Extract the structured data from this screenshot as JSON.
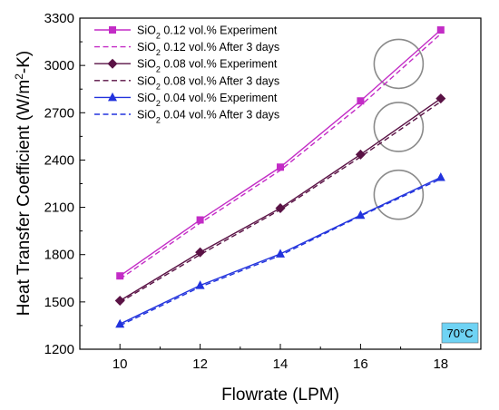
{
  "chart_data": {
    "type": "line",
    "xlabel": "Flowrate (LPM)",
    "ylabel_parts": [
      "Heat Transfer Coefficient (W/m",
      "2",
      "-K)"
    ],
    "xlim": [
      9,
      19
    ],
    "ylim": [
      1200,
      3300
    ],
    "xticks": [
      10,
      12,
      14,
      16,
      18
    ],
    "yticks": [
      1200,
      1500,
      1800,
      2100,
      2400,
      2700,
      3000,
      3300
    ],
    "x": [
      10,
      12,
      14,
      16,
      18
    ],
    "grid": false,
    "legend_position": "top-left",
    "annotation": "70°C",
    "annotation_bg": "#6fd3f4",
    "series": [
      {
        "name_parts": [
          "SiO",
          "2",
          " 0.12 vol.% Experiment"
        ],
        "color": "#c32cc6",
        "dash": false,
        "marker": "square",
        "values": [
          1665,
          2020,
          2355,
          2775,
          3225
        ]
      },
      {
        "name_parts": [
          "SiO",
          "2",
          " 0.12 vol.% After 3 days"
        ],
        "color": "#c32cc6",
        "dash": true,
        "marker": "none",
        "values": [
          1645,
          2000,
          2335,
          2745,
          3200
        ]
      },
      {
        "name_parts": [
          "SiO",
          "2",
          " 0.08 vol.% Experiment"
        ],
        "color": "#5a1245",
        "dash": false,
        "marker": "diamond",
        "values": [
          1508,
          1815,
          2095,
          2435,
          2790
        ]
      },
      {
        "name_parts": [
          "SiO",
          "2",
          " 0.08 vol.% After 3 days"
        ],
        "color": "#5a1245",
        "dash": true,
        "marker": "none",
        "values": [
          1498,
          1800,
          2085,
          2420,
          2770
        ]
      },
      {
        "name_parts": [
          "SiO",
          "2",
          " 0.04 vol.% Experiment"
        ],
        "color": "#2233dd",
        "dash": false,
        "marker": "triangle",
        "values": [
          1360,
          1605,
          1805,
          2050,
          2290
        ]
      },
      {
        "name_parts": [
          "SiO",
          "2",
          " 0.04 vol.% After 3 days"
        ],
        "color": "#2233dd",
        "dash": true,
        "marker": "none",
        "values": [
          1350,
          1595,
          1795,
          2045,
          2280
        ]
      }
    ],
    "highlight_circles": [
      {
        "x": 16.95,
        "y": 3010
      },
      {
        "x": 16.95,
        "y": 2610
      },
      {
        "x": 16.95,
        "y": 2180
      }
    ]
  }
}
